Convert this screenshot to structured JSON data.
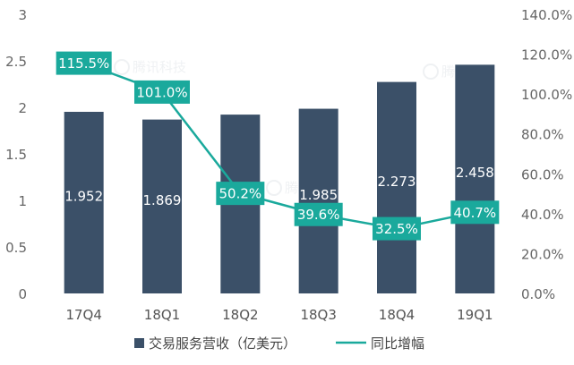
{
  "chart_data": {
    "type": "bar",
    "categories": [
      "17Q4",
      "18Q1",
      "18Q2",
      "18Q3",
      "18Q4",
      "19Q1"
    ],
    "series": [
      {
        "name": "交易服务营收（亿美元）",
        "type": "bar",
        "axis": "left",
        "values": [
          1.952,
          1.869,
          1.922,
          1.985,
          2.273,
          2.458
        ],
        "labels": [
          "1.952",
          "1.869",
          "1.922",
          "1.985",
          "2.273",
          "2.458"
        ],
        "color": "#3b5068"
      },
      {
        "name": "同比增幅",
        "type": "line",
        "axis": "right",
        "values": [
          115.5,
          101.0,
          50.2,
          39.6,
          32.5,
          40.7
        ],
        "labels": [
          "115.5%",
          "101.0%",
          "50.2%",
          "39.6%",
          "32.5%",
          "40.7%"
        ],
        "color": "#1aa99c"
      }
    ],
    "left_axis": {
      "ylim": [
        0,
        3
      ],
      "ticks": [
        0,
        0.5,
        1,
        1.5,
        2,
        2.5,
        3
      ],
      "tick_labels": [
        "0",
        "0.5",
        "1",
        "1.5",
        "2",
        "2.5",
        "3"
      ]
    },
    "right_axis": {
      "ylim": [
        0,
        140
      ],
      "ticks": [
        0,
        20,
        40,
        60,
        80,
        100,
        120,
        140
      ],
      "tick_labels": [
        "0.0%",
        "20.0%",
        "40.0%",
        "60.0%",
        "80.0%",
        "100.0%",
        "120.0%",
        "140.0%"
      ]
    },
    "title": "",
    "xlabel": "",
    "grid": false,
    "legend_position": "bottom"
  },
  "watermark": {
    "text": "腾讯科技"
  }
}
